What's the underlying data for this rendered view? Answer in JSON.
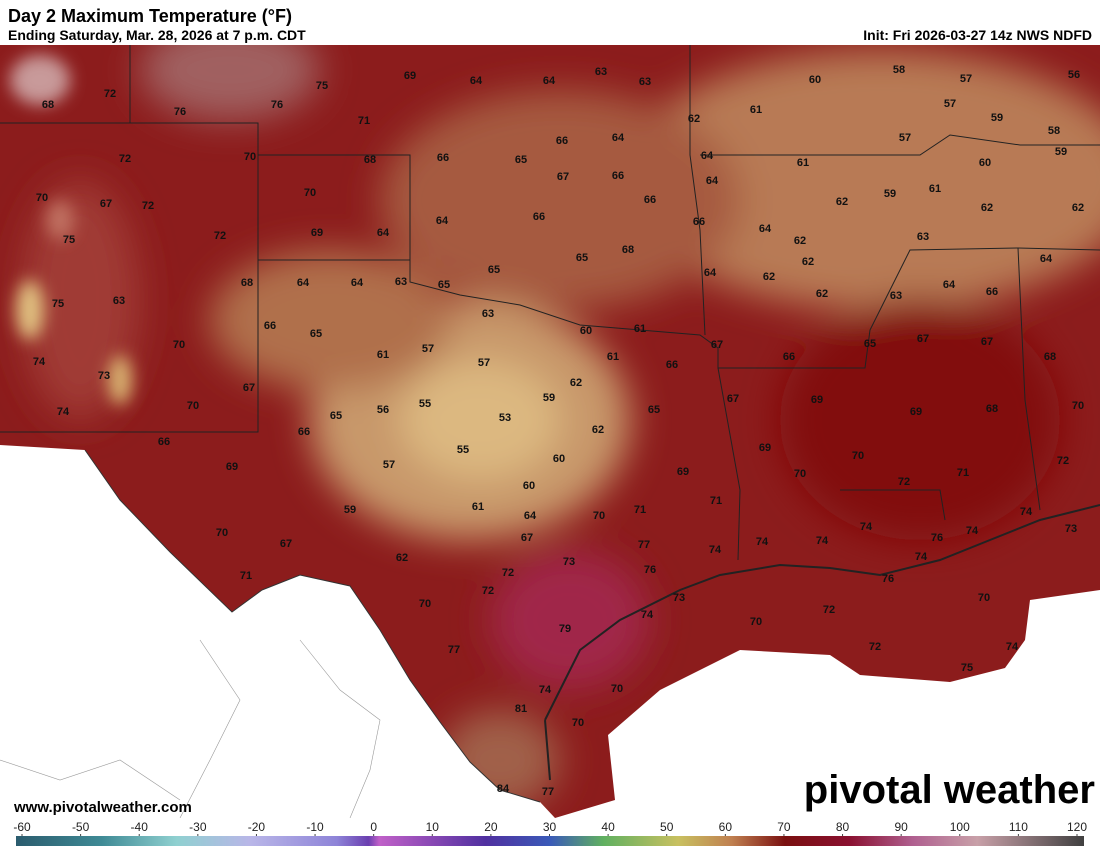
{
  "header": {
    "title": "Day 2 Maximum Temperature (°F)",
    "subtitle": "Ending Saturday, Mar. 28, 2026 at 7 p.m. CDT",
    "init": "Init: Fri 2026-03-27 14z NWS NDFD"
  },
  "labels": [
    69,
    64,
    64,
    63,
    63,
    60,
    58,
    57,
    56,
    72,
    75,
    76,
    76,
    68,
    57,
    61,
    62,
    59,
    71,
    58,
    72,
    70,
    68,
    66,
    65,
    66,
    64,
    57,
    64,
    61,
    60,
    59,
    70,
    67,
    72,
    70,
    67,
    66,
    66,
    64,
    59,
    62,
    61,
    62,
    62,
    75,
    72,
    69,
    64,
    64,
    66,
    64,
    62,
    66,
    63,
    68,
    65,
    65,
    62,
    62,
    64,
    64,
    75,
    63,
    68,
    64,
    64,
    63,
    65,
    62,
    63,
    64,
    66,
    63,
    60,
    61,
    66,
    65,
    67,
    65,
    67,
    67,
    70,
    74,
    73,
    61,
    57,
    57,
    61,
    66,
    66,
    68,
    67,
    62,
    59,
    70,
    74,
    65,
    56,
    55,
    53,
    67,
    69,
    69,
    68,
    70,
    66,
    66,
    62,
    65,
    55,
    60,
    69,
    70,
    72,
    69,
    57,
    69,
    70,
    71,
    72,
    60,
    71,
    59,
    61,
    64,
    70,
    71,
    74,
    73,
    70,
    67,
    67,
    77,
    74,
    74,
    74,
    74,
    76,
    74,
    62,
    73,
    74,
    71,
    72,
    72,
    76,
    76,
    70,
    73,
    72,
    70,
    74,
    70,
    77,
    79,
    72,
    74,
    75,
    74,
    70,
    81,
    70,
    84,
    77
  ],
  "colorbar": {
    "ticks": [
      -60,
      -50,
      -40,
      -30,
      -20,
      -10,
      0,
      10,
      20,
      30,
      40,
      50,
      60,
      70,
      80,
      90,
      100,
      110,
      120
    ]
  },
  "footer": {
    "website": "www.pivotalweather.com",
    "logo": "pivotal weather"
  }
}
